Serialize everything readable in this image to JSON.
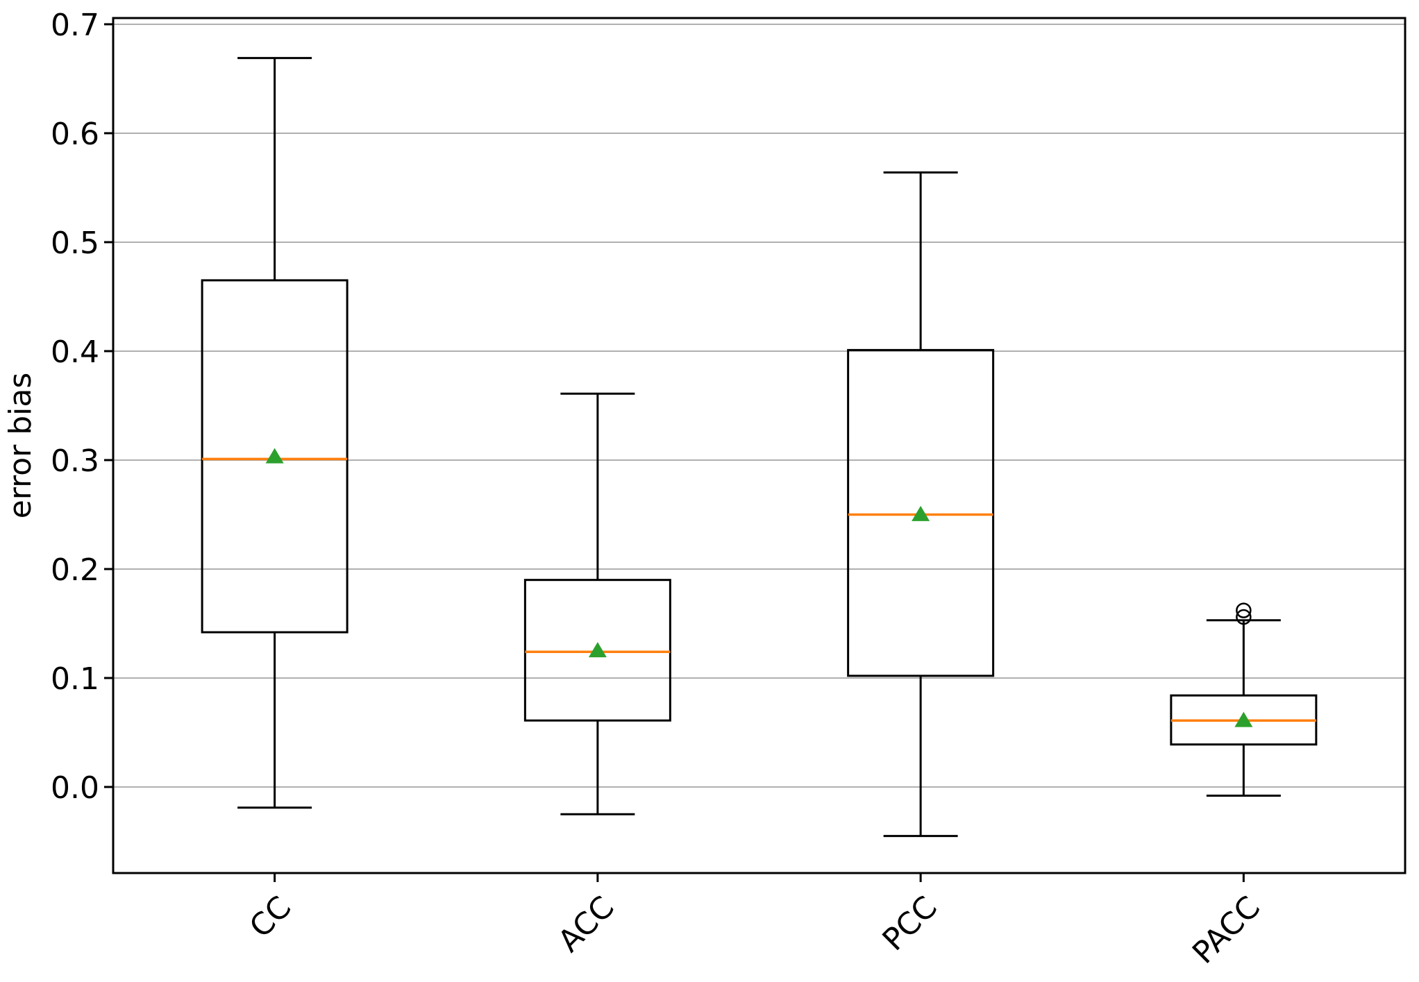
{
  "figure": {
    "kind": "boxplot-figure"
  },
  "chart_data": {
    "type": "boxplot",
    "title": "",
    "xlabel": "",
    "ylabel": "error bias",
    "categories": [
      "CC",
      "ACC",
      "PCC",
      "PACC"
    ],
    "yticks": [
      0.0,
      0.1,
      0.2,
      0.3,
      0.4,
      0.5,
      0.6,
      0.7
    ],
    "ytick_labels": [
      "0.0",
      "0.1",
      "0.2",
      "0.3",
      "0.4",
      "0.5",
      "0.6",
      "0.7"
    ],
    "ylim": [
      -0.079,
      0.7057
    ],
    "grid": true,
    "xtick_rotation_deg": 45,
    "series": [
      {
        "name": "CC",
        "whisker_low": -0.019,
        "q1": 0.142,
        "median": 0.301,
        "mean": 0.304,
        "q3": 0.465,
        "whisker_high": 0.669,
        "outliers": []
      },
      {
        "name": "ACC",
        "whisker_low": -0.025,
        "q1": 0.061,
        "median": 0.124,
        "mean": 0.126,
        "q3": 0.19,
        "whisker_high": 0.361,
        "outliers": []
      },
      {
        "name": "PCC",
        "whisker_low": -0.045,
        "q1": 0.102,
        "median": 0.25,
        "mean": 0.251,
        "q3": 0.401,
        "whisker_high": 0.564,
        "outliers": []
      },
      {
        "name": "PACC",
        "whisker_low": -0.008,
        "q1": 0.039,
        "median": 0.061,
        "mean": 0.062,
        "q3": 0.084,
        "whisker_high": 0.153,
        "outliers": [
          0.156,
          0.162
        ]
      }
    ],
    "colors": {
      "median": "#ff7f0e",
      "mean": "#2ca02c",
      "box_line": "#000000",
      "grid": "#b0b0b0",
      "background": "#ffffff"
    }
  }
}
